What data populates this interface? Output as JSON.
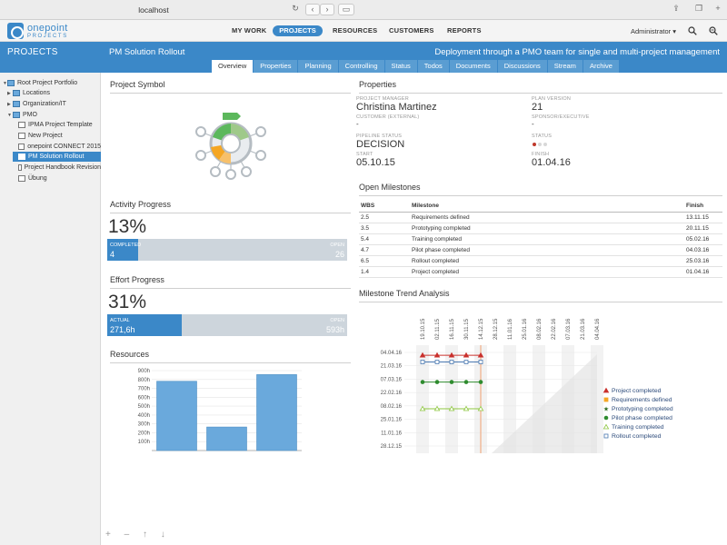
{
  "browser": {
    "url": "localhost"
  },
  "logo": {
    "name": "onepoint",
    "sub": "PROJECTS"
  },
  "nav": {
    "my_work": "MY WORK",
    "projects": "PROJECTS",
    "resources": "RESOURCES",
    "customers": "CUSTOMERS",
    "reports": "REPORTS"
  },
  "user": "Administrator ▾",
  "section_title": "PROJECTS",
  "project": {
    "title": "PM Solution Rollout",
    "subtitle": "Deployment through a PMO team for single and multi-project management"
  },
  "tabs": [
    "Overview",
    "Properties",
    "Planning",
    "Controlling",
    "Status",
    "Todos",
    "Documents",
    "Discussions",
    "Stream",
    "Archive"
  ],
  "tree": [
    "Root Project Portfolio",
    "Locations",
    "Organization/IT",
    "PMO",
    "IPMA Project Template",
    "New Project",
    "onepoint CONNECT 2015",
    "PM Solution Rollout",
    "Project Handbook Revision",
    "Übung"
  ],
  "sidebar_footer": "+ – ↑ ↓",
  "panels": {
    "symbol": "Project Symbol",
    "properties": "Properties",
    "activity": "Activity Progress",
    "effort": "Effort Progress",
    "milestones": "Open Milestones",
    "resources": "Resources",
    "trend": "Milestone Trend Analysis"
  },
  "activity": {
    "percent": "13%",
    "percent_value": 13,
    "completed_label": "COMPLETED",
    "completed": "4",
    "open_label": "OPEN",
    "open": "26"
  },
  "effort": {
    "percent": "31%",
    "percent_value": 31,
    "actual_label": "ACTUAL",
    "actual": "271,6h",
    "open_label": "OPEN",
    "open": "593h"
  },
  "props": {
    "pm_label": "PROJECT MANAGER",
    "pm": "Christina Martinez",
    "customer_label": "CUSTOMER (EXTERNAL)",
    "customer": "-",
    "pipeline_label": "PIPELINE STATUS",
    "pipeline": "DECISION",
    "start_label": "START",
    "start": "05.10.15",
    "plan_label": "PLAN VERSION",
    "plan": "21",
    "sponsor_label": "SPONSOR/EXECUTIVE",
    "sponsor": "-",
    "status_label": "STATUS",
    "finish_label": "FINISH",
    "finish": "01.04.16"
  },
  "milestone_headers": {
    "wbs": "WBS",
    "milestone": "Milestone",
    "finish": "Finish"
  },
  "milestones": [
    {
      "wbs": "2.5",
      "name": "Requirements defined",
      "finish": "13.11.15"
    },
    {
      "wbs": "3.5",
      "name": "Prototyping completed",
      "finish": "20.11.15"
    },
    {
      "wbs": "5.4",
      "name": "Training completed",
      "finish": "05.02.16"
    },
    {
      "wbs": "4.7",
      "name": "Pilot phase completed",
      "finish": "04.03.16"
    },
    {
      "wbs": "6.5",
      "name": "Rollout completed",
      "finish": "25.03.16"
    },
    {
      "wbs": "1.4",
      "name": "Project completed",
      "finish": "01.04.16"
    }
  ],
  "colors": {
    "primary": "#3b88c8",
    "bar": "#6aa9dc",
    "status_red": "#c0392b",
    "red": "#c9302c",
    "orange": "#f5a623",
    "darkgreen": "#2d6a1f",
    "green": "#2e8b2e",
    "lime": "#8dc63f",
    "blue": "#4a78b0"
  },
  "chart_data": [
    {
      "type": "bar",
      "categories": [
        "",
        "",
        ""
      ],
      "values": [
        780,
        265,
        855
      ],
      "ylim": [
        0,
        900
      ],
      "yticks": [
        "100h",
        "200h",
        "300h",
        "400h",
        "500h",
        "600h",
        "700h",
        "800h",
        "900h"
      ],
      "grid": true
    },
    {
      "type": "line",
      "x_labels": [
        "19.10.15",
        "02.11.15",
        "16.11.15",
        "30.11.15",
        "14.12.15",
        "28.12.15",
        "11.01.16",
        "25.01.16",
        "08.02.16",
        "22.02.16",
        "07.03.16",
        "21.03.16",
        "04.04.16"
      ],
      "y_labels": [
        "04.04.16",
        "21.03.16",
        "07.03.16",
        "22.02.16",
        "08.02.16",
        "25.01.16",
        "11.01.16",
        "28.12.15"
      ],
      "current_index": 4,
      "series": [
        {
          "name": "Project completed",
          "marker": "triangle",
          "color": "#c9302c",
          "y": "01.04.16"
        },
        {
          "name": "Requirements defined",
          "marker": "square",
          "color": "#f5a623",
          "y": null
        },
        {
          "name": "Prototyping completed",
          "marker": "star",
          "color": "#2d6a1f",
          "y": null
        },
        {
          "name": "Pilot phase completed",
          "marker": "circle",
          "color": "#2e8b2e",
          "y": "04.03.16"
        },
        {
          "name": "Training completed",
          "marker": "triangle-open",
          "color": "#8dc63f",
          "y": "05.02.16"
        },
        {
          "name": "Rollout completed",
          "marker": "square-open",
          "color": "#4a78b0",
          "y": "25.03.16"
        }
      ]
    }
  ]
}
